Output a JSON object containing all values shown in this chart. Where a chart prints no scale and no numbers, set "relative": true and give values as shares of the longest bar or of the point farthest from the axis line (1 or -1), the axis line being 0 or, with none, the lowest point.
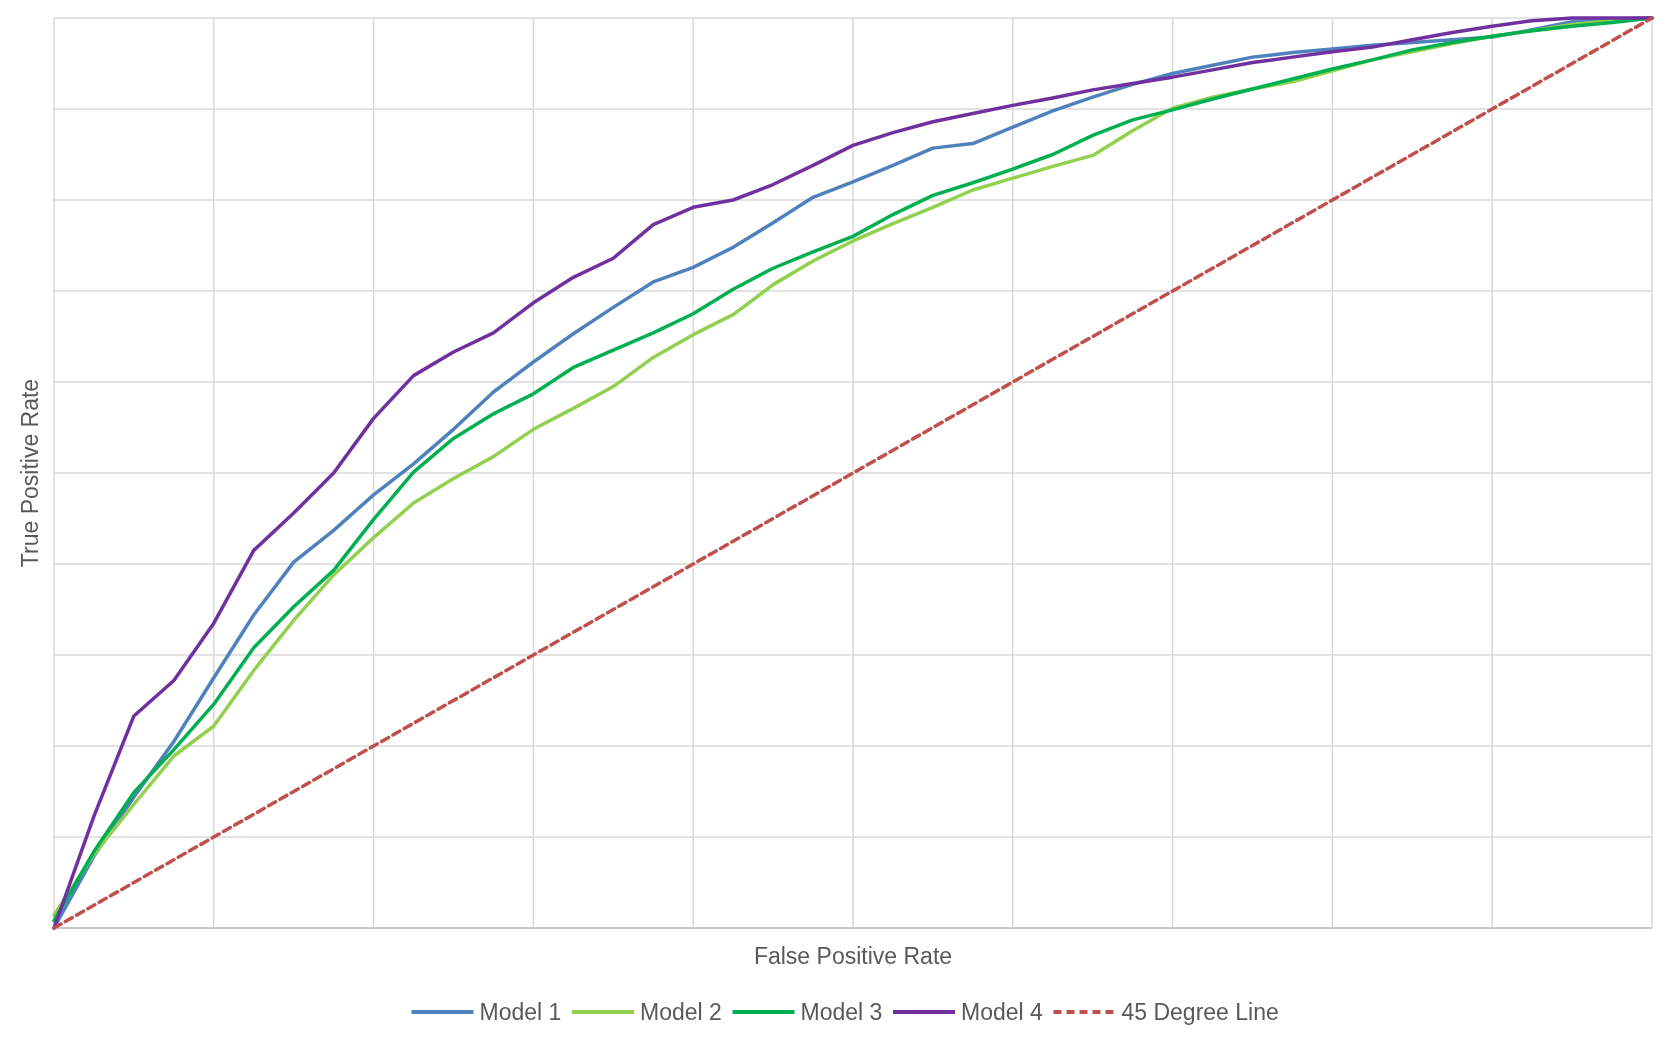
{
  "chart_data": {
    "type": "line",
    "xlabel": "False Positive Rate",
    "ylabel": "True Positive Rate",
    "relative": true,
    "grid": true,
    "legend": "bottom",
    "categories": [
      null,
      null,
      null,
      null,
      null,
      null,
      null,
      null,
      null,
      null,
      null,
      null,
      null,
      null,
      null,
      null,
      null,
      null,
      null,
      null,
      null,
      null,
      null,
      null,
      null,
      null,
      null,
      null,
      null,
      null,
      null,
      null,
      null,
      null,
      null,
      null,
      null,
      null,
      null,
      null,
      null
    ],
    "series": [
      {
        "name": "Model 1",
        "color": "#4f81bd",
        "values": [
          0,
          0.079,
          0.144,
          0.205,
          0.275,
          0.344,
          0.402,
          0.437,
          0.476,
          0.51,
          0.548,
          0.589,
          0.622,
          0.653,
          0.682,
          0.71,
          0.726,
          0.748,
          0.775,
          0.803,
          0.82,
          0.838,
          0.857,
          0.862,
          0.88,
          0.898,
          0.913,
          0.927,
          0.939,
          0.948,
          0.957,
          0.962,
          0.966,
          0.97,
          0.973,
          0.976,
          0.979,
          0.987,
          0.996,
          0.999,
          1
        ]
      },
      {
        "name": "Model 2",
        "color": "#92d050",
        "values": [
          0.014,
          0.081,
          0.136,
          0.189,
          0.222,
          0.283,
          0.338,
          0.388,
          0.429,
          0.467,
          0.494,
          0.518,
          0.548,
          0.571,
          0.595,
          0.627,
          0.652,
          0.674,
          0.707,
          0.733,
          0.755,
          0.774,
          0.792,
          0.811,
          0.824,
          0.837,
          0.849,
          0.876,
          0.901,
          0.913,
          0.922,
          0.93,
          0.942,
          0.954,
          0.963,
          0.972,
          0.98,
          0.986,
          0.993,
          0.997,
          1
        ]
      },
      {
        "name": "Model 3",
        "color": "#00b050",
        "values": [
          0.008,
          0.084,
          0.149,
          0.196,
          0.246,
          0.308,
          0.353,
          0.393,
          0.449,
          0.501,
          0.538,
          0.565,
          0.587,
          0.616,
          0.635,
          0.654,
          0.675,
          0.702,
          0.725,
          0.743,
          0.76,
          0.784,
          0.805,
          0.819,
          0.834,
          0.85,
          0.871,
          0.888,
          0.899,
          0.911,
          0.922,
          0.933,
          0.944,
          0.954,
          0.965,
          0.973,
          0.98,
          0.986,
          0.991,
          0.995,
          1
        ]
      },
      {
        "name": "Model 4",
        "color": "#7030a0",
        "values": [
          0,
          0.123,
          0.233,
          0.272,
          0.335,
          0.415,
          0.456,
          0.5,
          0.56,
          0.607,
          0.633,
          0.654,
          0.687,
          0.715,
          0.736,
          0.773,
          0.792,
          0.8,
          0.817,
          0.838,
          0.86,
          0.874,
          0.886,
          0.895,
          0.904,
          0.912,
          0.921,
          0.928,
          0.935,
          0.943,
          0.951,
          0.957,
          0.963,
          0.968,
          0.976,
          0.984,
          0.991,
          0.997,
          1,
          1,
          1
        ]
      },
      {
        "name": "45 Degree Line",
        "color": "#c0504d",
        "line_style": "dashed",
        "values": [
          0,
          0.025,
          0.05,
          0.075,
          0.1,
          0.125,
          0.15,
          0.175,
          0.2,
          0.225,
          0.25,
          0.275,
          0.3,
          0.325,
          0.35,
          0.375,
          0.4,
          0.425,
          0.45,
          0.475,
          0.5,
          0.525,
          0.55,
          0.575,
          0.6,
          0.625,
          0.65,
          0.675,
          0.7,
          0.725,
          0.75,
          0.775,
          0.8,
          0.825,
          0.85,
          0.875,
          0.9,
          0.925,
          0.95,
          0.975,
          1
        ]
      }
    ]
  }
}
